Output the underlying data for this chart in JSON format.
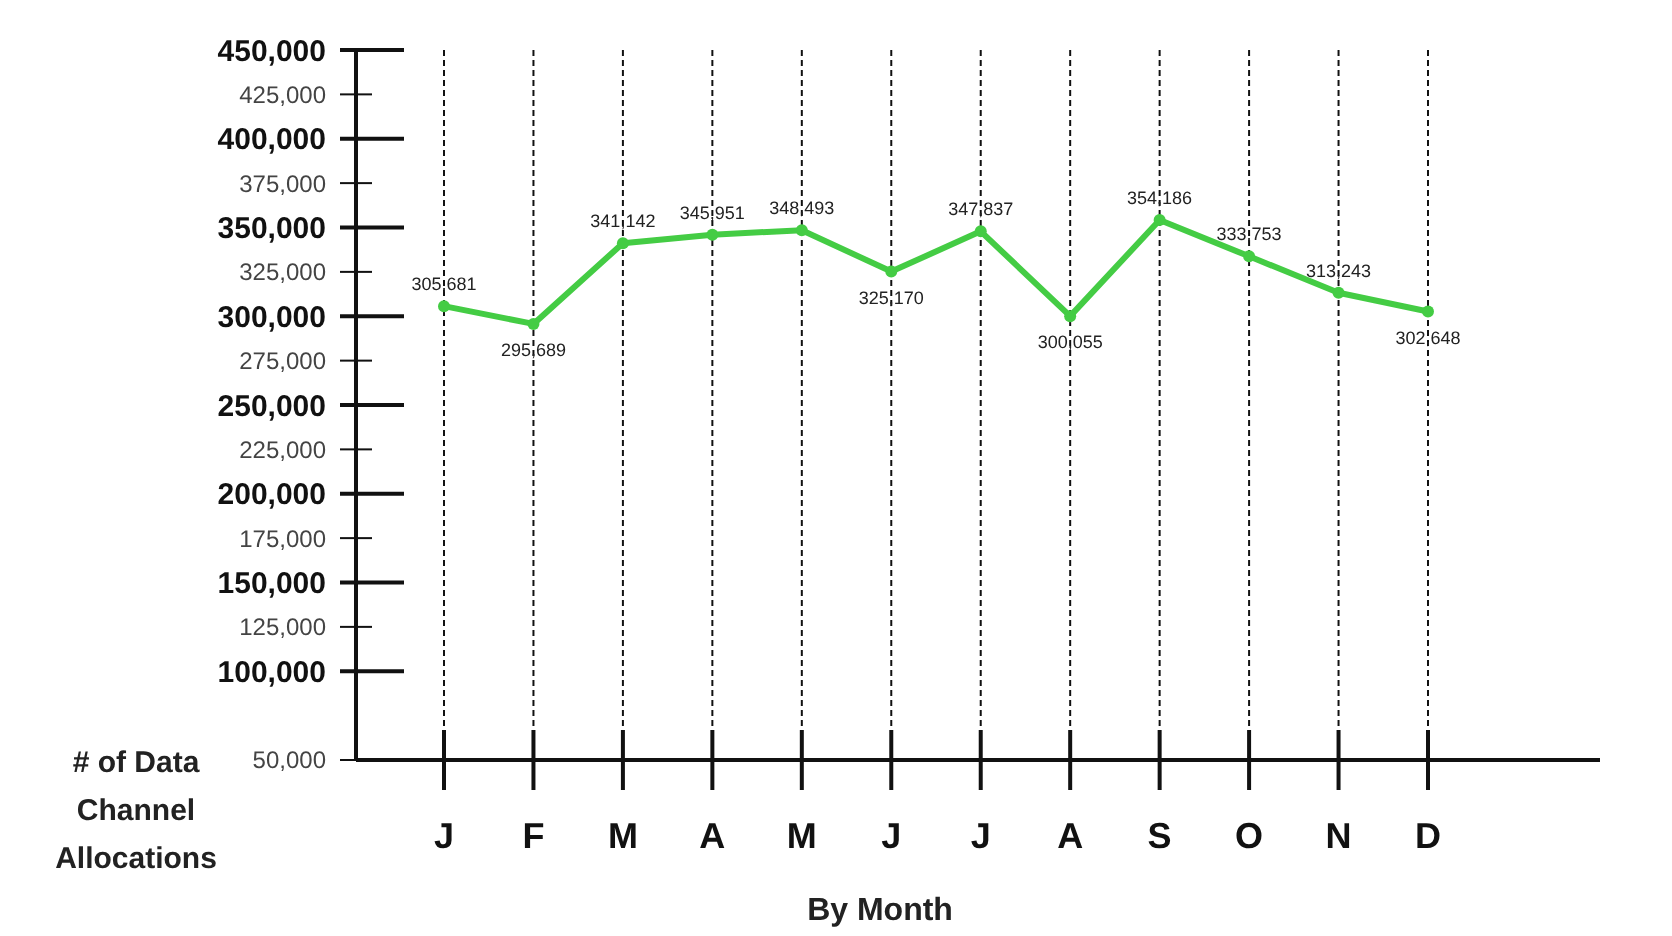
{
  "chart_data": {
    "type": "line",
    "xlabel": "By Month",
    "ylabel": "# of Data Channel Allocations",
    "categories": [
      "J",
      "F",
      "M",
      "A",
      "M",
      "J",
      "J",
      "A",
      "S",
      "O",
      "N",
      "D"
    ],
    "series": [
      {
        "color": "#44cc44",
        "values": [
          305681,
          295689,
          341142,
          345951,
          348493,
          325170,
          347837,
          300055,
          354186,
          333753,
          313243,
          302648
        ],
        "value_labels": [
          "305,681",
          "295,689",
          "341,142",
          "345,951",
          "348,493",
          "325,170",
          "347,837",
          "300,055",
          "354,186",
          "333,753",
          "313,243",
          "302,648"
        ]
      }
    ],
    "ylim": [
      50000,
      450000
    ],
    "yticks": [
      {
        "value": 50000,
        "label": "50,000"
      },
      {
        "value": 100000,
        "label": "100,000"
      },
      {
        "value": 125000,
        "label": "125,000"
      },
      {
        "value": 150000,
        "label": "150,000"
      },
      {
        "value": 175000,
        "label": "175,000"
      },
      {
        "value": 200000,
        "label": "200,000"
      },
      {
        "value": 225000,
        "label": "225,000"
      },
      {
        "value": 250000,
        "label": "250,000"
      },
      {
        "value": 275000,
        "label": "275,000"
      },
      {
        "value": 300000,
        "label": "300,000"
      },
      {
        "value": 325000,
        "label": "325,000"
      },
      {
        "value": 350000,
        "label": "350,000"
      },
      {
        "value": 375000,
        "label": "375,000"
      },
      {
        "value": 400000,
        "label": "400,000"
      },
      {
        "value": 425000,
        "label": "425,000"
      },
      {
        "value": 450000,
        "label": "450,000"
      }
    ],
    "grid": "x",
    "marker": "circle",
    "line_style": "solid"
  }
}
